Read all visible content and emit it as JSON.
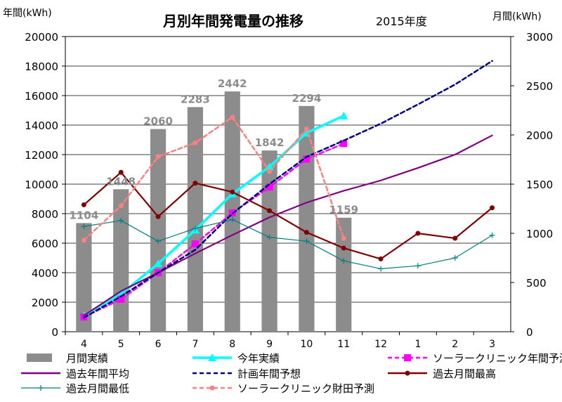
{
  "title": "月別年間発電量の推移",
  "subtitle": "2015年度",
  "left_axis_label": "年間(kWh)",
  "right_axis_label": "月間(kWh)",
  "chart_data": {
    "type": "bar",
    "categories": [
      "4",
      "5",
      "6",
      "7",
      "8",
      "9",
      "10",
      "11",
      "12",
      "1",
      "2",
      "3"
    ],
    "ylim_left": [
      0,
      20000
    ],
    "yticks_left": [
      0,
      2000,
      4000,
      6000,
      8000,
      10000,
      12000,
      14000,
      16000,
      18000,
      20000
    ],
    "ylim_right": [
      0,
      3000
    ],
    "yticks_right": [
      0,
      500,
      1000,
      1500,
      2000,
      2500,
      3000
    ],
    "grid": true,
    "legend_position": "bottom",
    "series": [
      {
        "name": "月間実績",
        "type": "bar",
        "axis": "right",
        "color": "#8c8c8c",
        "values": [
          1104,
          1448,
          2060,
          2283,
          2442,
          1842,
          2294,
          1159,
          null,
          null,
          null,
          null
        ],
        "data_labels": [
          "1104",
          "1448",
          "2060",
          "2283",
          "2442",
          "1842",
          "2294",
          "1159"
        ]
      },
      {
        "name": "今年実績",
        "type": "line",
        "axis": "left",
        "color": "#00ffff",
        "marker": "triangle",
        "values": [
          1104,
          2552,
          4612,
          6895,
          9337,
          11179,
          13473,
          14632,
          null,
          null,
          null,
          null
        ]
      },
      {
        "name": "ソーラークリニック年間予測",
        "type": "line",
        "axis": "left",
        "color": "#ff00ff",
        "marker": "square",
        "dash": true,
        "values": [
          1000,
          2200,
          4000,
          5950,
          8050,
          9800,
          11700,
          12750,
          null,
          null,
          null,
          null
        ]
      },
      {
        "name": "過去年間平均",
        "type": "line",
        "axis": "left",
        "color": "#800080",
        "marker": "none",
        "values": [
          1100,
          2750,
          4000,
          5300,
          6550,
          7750,
          8750,
          9550,
          10250,
          11100,
          12000,
          13300
        ]
      },
      {
        "name": "計画年間予想",
        "type": "line",
        "axis": "left",
        "color": "#000080",
        "marker": "none",
        "dash": true,
        "values": [
          950,
          2400,
          4000,
          5550,
          8000,
          10000,
          11850,
          12950,
          14100,
          15400,
          16750,
          18350
        ]
      },
      {
        "name": "過去月間最高",
        "type": "line",
        "axis": "right",
        "color": "#800000",
        "marker": "circle",
        "values": [
          1290,
          1620,
          1170,
          1510,
          1420,
          1230,
          1010,
          850,
          740,
          1000,
          950,
          1260
        ]
      },
      {
        "name": "過去月間最低",
        "type": "line",
        "axis": "right",
        "color": "#008080",
        "marker": "plus",
        "values": [
          1070,
          1130,
          920,
          1050,
          1140,
          960,
          920,
          720,
          640,
          670,
          750,
          980
        ]
      },
      {
        "name": "ソーラークリニック財田予測",
        "type": "line",
        "axis": "right",
        "color": "#ff8080",
        "marker": "circle",
        "dash": true,
        "values": [
          930,
          1280,
          1780,
          1920,
          2180,
          1630,
          2060,
          950,
          null,
          null,
          null,
          null
        ]
      }
    ]
  }
}
